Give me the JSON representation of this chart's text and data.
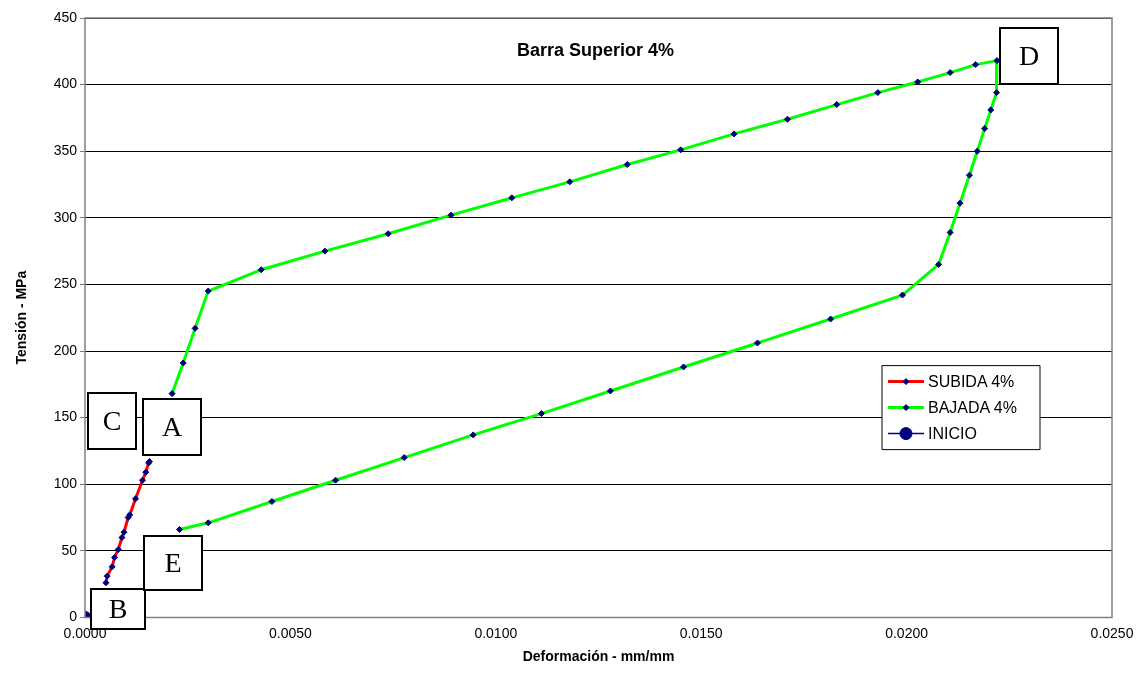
{
  "chart_data": {
    "type": "line",
    "title": "Barra Superior 4%",
    "xlabel": "Deformación - mm/mm",
    "ylabel": "Tensión - MPa",
    "xlim": [
      0,
      0.025
    ],
    "xticks": [
      {
        "value": 0,
        "label": "0.0000"
      },
      {
        "value": 0.005,
        "label": "0.0050"
      },
      {
        "value": 0.01,
        "label": "0.0100"
      },
      {
        "value": 0.015,
        "label": "0.0150"
      },
      {
        "value": 0.02,
        "label": "0.0200"
      },
      {
        "value": 0.025,
        "label": "0.0250"
      }
    ],
    "ylim": [
      0,
      450
    ],
    "yticks": [
      0,
      50,
      100,
      150,
      200,
      250,
      300,
      350,
      400,
      450
    ],
    "grid": "y",
    "legend": "right",
    "marker": "diamond",
    "line_style": "solid",
    "series": [
      {
        "name": "SUBIDA 4%",
        "color": "#ff0000",
        "x": [
          0.00051,
          0.00054,
          0.00066,
          0.00072,
          0.00081,
          0.0009,
          0.00095,
          0.00105,
          0.00109,
          0.00123,
          0.0014,
          0.00148,
          0.00155,
          0.00157
        ],
        "values": [
          26,
          31,
          38,
          45,
          51,
          60,
          64,
          75,
          77,
          89,
          103,
          109,
          116,
          117
        ]
      },
      {
        "name": "BAJADA 4%",
        "color": "#00ff00",
        "x": [
          0.00212,
          0.00239,
          0.00268,
          0.003,
          0.00429,
          0.00584,
          0.00738,
          0.00891,
          0.01039,
          0.0118,
          0.0132,
          0.0145,
          0.0158,
          0.0171,
          0.0183,
          0.0193,
          0.02027,
          0.02106,
          0.02168,
          0.0222,
          0.02219,
          0.02205,
          0.0219,
          0.02172,
          0.02153,
          0.0213,
          0.02106,
          0.02078,
          0.0199,
          0.01815,
          0.01637,
          0.01457,
          0.01279,
          0.01111,
          0.00945,
          0.00777,
          0.0061,
          0.00455,
          0.003,
          0.0023
        ],
        "values": [
          168,
          191,
          217,
          245,
          261,
          275,
          288,
          302,
          315,
          327,
          340,
          351,
          363,
          374,
          385,
          394,
          402,
          409,
          415,
          418,
          394,
          381,
          367,
          350,
          332,
          311,
          289,
          265,
          242,
          224,
          206,
          188,
          170,
          153,
          137,
          120,
          103,
          87,
          71,
          66
        ]
      },
      {
        "name": "INICIO",
        "color": "#000080",
        "marker": "circle",
        "x": [
          0
        ],
        "values": [
          0
        ]
      }
    ],
    "annotations": [
      "C",
      "A",
      "B",
      "D",
      "E"
    ]
  }
}
